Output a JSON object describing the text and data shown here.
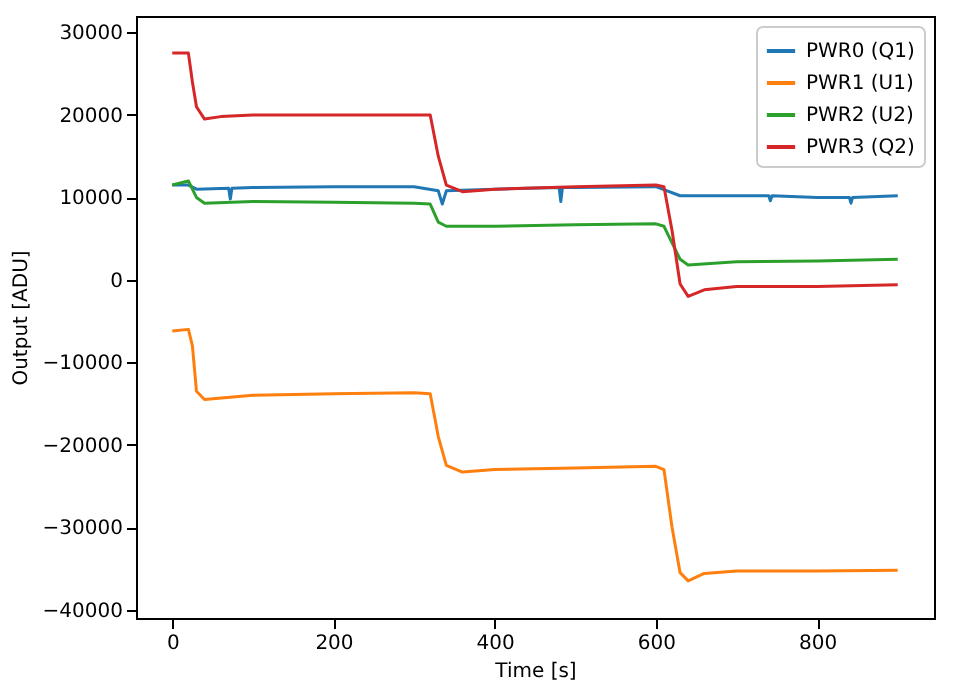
{
  "chart_data": {
    "type": "line",
    "xlabel": "Time [s]",
    "ylabel": "Output [ADU]",
    "xlim": [
      -45,
      945
    ],
    "ylim": [
      -41000,
      32000
    ],
    "xticks": [
      0,
      200,
      400,
      600,
      800
    ],
    "yticks": [
      -40000,
      -30000,
      -20000,
      -10000,
      0,
      10000,
      20000,
      30000
    ],
    "grid": false,
    "legend": "top right",
    "marker": "none",
    "line_style": "solid",
    "series": [
      {
        "name": "PWR0 (Q1)",
        "color": "#1f77b4",
        "x": [
          0,
          20,
          30,
          70,
          72,
          74,
          100,
          200,
          300,
          330,
          335,
          340,
          400,
          480,
          482,
          484,
          500,
          600,
          630,
          700,
          740,
          742,
          744,
          800,
          840,
          842,
          844,
          900
        ],
        "values": [
          11500,
          11500,
          11000,
          11100,
          9800,
          11100,
          11200,
          11300,
          11300,
          10800,
          9200,
          10800,
          11000,
          11200,
          9500,
          11200,
          11200,
          11300,
          10200,
          10200,
          10200,
          9600,
          10200,
          10000,
          10000,
          9300,
          10000,
          10200
        ]
      },
      {
        "name": "PWR1 (U1)",
        "color": "#ff7f0e",
        "x": [
          0,
          20,
          25,
          30,
          40,
          100,
          200,
          300,
          320,
          330,
          340,
          360,
          400,
          500,
          600,
          610,
          620,
          630,
          640,
          660,
          700,
          800,
          900
        ],
        "values": [
          -6200,
          -6000,
          -8000,
          -13500,
          -14500,
          -14000,
          -13800,
          -13700,
          -13800,
          -19000,
          -22500,
          -23300,
          -23000,
          -22800,
          -22600,
          -23000,
          -30000,
          -35500,
          -36500,
          -35600,
          -35300,
          -35300,
          -35200
        ]
      },
      {
        "name": "PWR2 (U2)",
        "color": "#2ca02c",
        "x": [
          0,
          20,
          30,
          40,
          100,
          200,
          300,
          320,
          330,
          340,
          400,
          500,
          600,
          610,
          630,
          640,
          700,
          800,
          900
        ],
        "values": [
          11500,
          12000,
          10000,
          9300,
          9500,
          9400,
          9300,
          9200,
          7000,
          6500,
          6500,
          6700,
          6800,
          6500,
          2500,
          1800,
          2200,
          2300,
          2500
        ]
      },
      {
        "name": "PWR3 (Q2)",
        "color": "#d62728",
        "x": [
          0,
          20,
          25,
          30,
          40,
          60,
          100,
          200,
          310,
          320,
          330,
          340,
          360,
          400,
          500,
          600,
          610,
          620,
          630,
          640,
          660,
          700,
          800,
          900
        ],
        "values": [
          27500,
          27500,
          24000,
          21000,
          19500,
          19800,
          20000,
          20000,
          20000,
          20000,
          15000,
          11500,
          10700,
          11000,
          11300,
          11500,
          11300,
          6000,
          -500,
          -2000,
          -1200,
          -800,
          -800,
          -600
        ]
      }
    ]
  }
}
